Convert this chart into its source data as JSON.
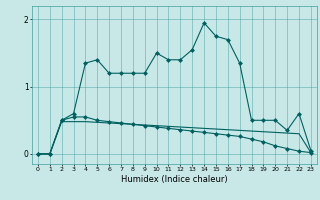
{
  "xlabel": "Humidex (Indice chaleur)",
  "x": [
    0,
    1,
    2,
    3,
    4,
    5,
    6,
    7,
    8,
    9,
    10,
    11,
    12,
    13,
    14,
    15,
    16,
    17,
    18,
    19,
    20,
    21,
    22,
    23
  ],
  "line1": [
    0.0,
    0.0,
    0.5,
    0.6,
    1.35,
    1.4,
    1.2,
    1.2,
    1.2,
    1.2,
    1.5,
    1.4,
    1.4,
    1.55,
    1.95,
    1.75,
    1.7,
    1.35,
    0.5,
    0.5,
    0.5,
    0.35,
    0.6,
    0.05
  ],
  "line2": [
    0.0,
    0.0,
    0.5,
    0.55,
    0.55,
    0.5,
    0.48,
    0.46,
    0.44,
    0.42,
    0.4,
    0.38,
    0.36,
    0.34,
    0.32,
    0.3,
    0.28,
    0.26,
    0.22,
    0.18,
    0.12,
    0.08,
    0.04,
    0.02
  ],
  "line3": [
    0.0,
    0.0,
    0.48,
    0.48,
    0.48,
    0.47,
    0.46,
    0.45,
    0.44,
    0.43,
    0.42,
    0.41,
    0.4,
    0.39,
    0.38,
    0.37,
    0.36,
    0.35,
    0.34,
    0.33,
    0.32,
    0.31,
    0.3,
    0.02
  ],
  "line_color": "#006060",
  "bg_color": "#c8e8e8",
  "grid_color": "#40a0a0",
  "ylim": [
    -0.15,
    2.2
  ],
  "xlim": [
    -0.5,
    23.5
  ],
  "xlabel_fontsize": 6,
  "tick_fontsize": 4.5,
  "ytick_fontsize": 5.5
}
